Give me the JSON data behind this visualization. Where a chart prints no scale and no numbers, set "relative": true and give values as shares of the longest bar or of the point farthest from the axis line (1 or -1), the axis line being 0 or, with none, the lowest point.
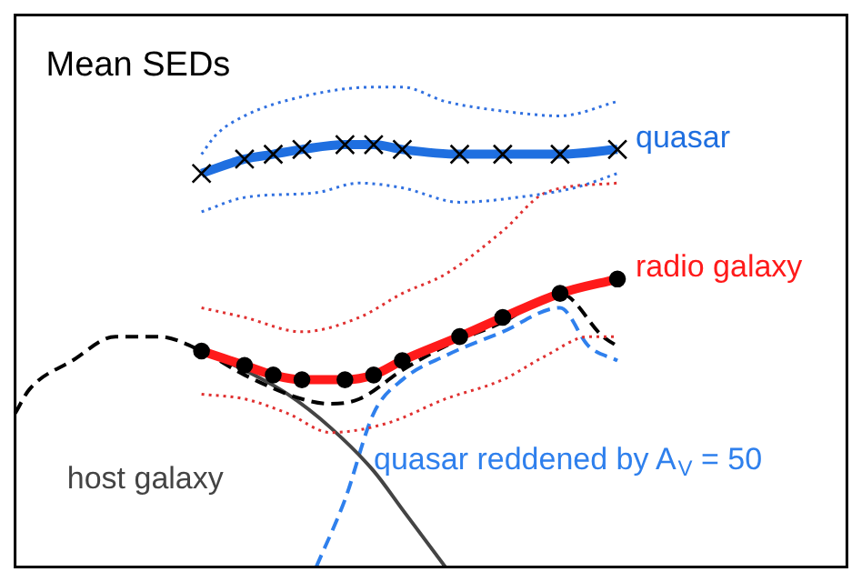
{
  "chart_data": {
    "type": "line",
    "title": "Mean SEDs",
    "relative": true,
    "legend": false,
    "categories": [
      null,
      null,
      null,
      null,
      null,
      null,
      null,
      null,
      null,
      null,
      null,
      null,
      null,
      null,
      null,
      null,
      null,
      null,
      null,
      null,
      null,
      null,
      null,
      null,
      null,
      null,
      null,
      null,
      null,
      null,
      null,
      null,
      null,
      null,
      null,
      null,
      null,
      null,
      null,
      null,
      null,
      null,
      null,
      null,
      null,
      null,
      null,
      null,
      null,
      null,
      null,
      null,
      null,
      null,
      null,
      null,
      null,
      null,
      null
    ],
    "series": [
      {
        "name": "quasar",
        "color": "#1f6fe0",
        "marker": "cross",
        "line_style": "solid",
        "values": [
          null,
          null,
          null,
          null,
          null,
          null,
          null,
          null,
          null,
          null,
          null,
          null,
          null,
          0.82,
          null,
          null,
          0.85,
          null,
          0.86,
          null,
          0.87,
          null,
          null,
          0.88,
          null,
          0.88,
          null,
          0.87,
          null,
          null,
          null,
          0.86,
          null,
          null,
          0.86,
          null,
          null,
          null,
          0.86,
          null,
          null,
          null,
          0.87,
          null,
          null,
          null,
          null,
          null,
          null,
          null,
          null,
          null,
          null,
          null,
          null,
          null,
          null,
          null,
          null
        ]
      },
      {
        "color": "#3070e0",
        "marker": "none",
        "line_style": "dotted",
        "values": [
          null,
          null,
          null,
          null,
          null,
          null,
          null,
          null,
          null,
          null,
          null,
          null,
          null,
          0.86,
          0.9,
          null,
          0.94,
          null,
          null,
          null,
          0.98,
          null,
          null,
          null,
          null,
          1.0,
          null,
          1.0,
          null,
          null,
          0.97,
          null,
          null,
          null,
          0.95,
          null,
          null,
          null,
          0.94,
          null,
          null,
          null,
          0.97,
          null,
          null,
          null,
          null,
          null,
          null,
          null,
          null,
          null,
          null,
          null,
          null,
          null,
          null,
          null,
          null
        ]
      },
      {
        "color": "#3070e0",
        "marker": "none",
        "line_style": "dotted",
        "values": [
          null,
          null,
          null,
          null,
          null,
          null,
          null,
          null,
          null,
          null,
          null,
          null,
          null,
          0.74,
          null,
          null,
          0.77,
          null,
          null,
          null,
          null,
          0.78,
          null,
          null,
          0.8,
          null,
          null,
          0.79,
          null,
          null,
          null,
          0.76,
          null,
          null,
          null,
          0.77,
          null,
          null,
          null,
          0.79,
          null,
          null,
          0.82,
          null,
          null,
          null,
          null,
          null,
          null,
          null,
          null,
          null,
          null,
          null,
          null,
          null,
          null,
          null,
          null
        ]
      },
      {
        "name": "radio galaxy",
        "color": "#ff1a1a",
        "marker": "circle",
        "line_style": "solid",
        "values": [
          null,
          null,
          null,
          null,
          null,
          null,
          null,
          null,
          null,
          null,
          null,
          null,
          null,
          0.45,
          null,
          null,
          0.42,
          null,
          0.4,
          null,
          0.39,
          null,
          null,
          0.39,
          null,
          0.4,
          null,
          0.43,
          null,
          null,
          null,
          0.48,
          null,
          null,
          0.52,
          null,
          null,
          null,
          0.57,
          null,
          null,
          null,
          0.6,
          null,
          null,
          null,
          null,
          null,
          null,
          null,
          null,
          null,
          null,
          null,
          null,
          null,
          null,
          null,
          null
        ]
      },
      {
        "color": "#e03030",
        "marker": "none",
        "line_style": "dotted",
        "values": [
          null,
          null,
          null,
          null,
          null,
          null,
          null,
          null,
          null,
          null,
          null,
          null,
          null,
          0.54,
          null,
          null,
          0.52,
          null,
          null,
          null,
          0.49,
          null,
          null,
          null,
          0.52,
          null,
          null,
          0.57,
          null,
          null,
          0.61,
          null,
          null,
          null,
          0.7,
          null,
          null,
          0.78,
          null,
          null,
          null,
          null,
          0.8,
          null,
          null,
          null,
          null,
          null,
          null,
          null,
          null,
          null,
          null,
          null,
          null,
          null,
          null,
          null,
          null
        ]
      },
      {
        "color": "#e03030",
        "marker": "none",
        "line_style": "dotted",
        "values": [
          null,
          null,
          null,
          null,
          null,
          null,
          null,
          null,
          null,
          null,
          null,
          null,
          null,
          0.36,
          null,
          null,
          0.35,
          null,
          null,
          0.32,
          null,
          null,
          0.28,
          null,
          null,
          null,
          0.3,
          null,
          null,
          null,
          0.35,
          null,
          null,
          null,
          0.39,
          null,
          null,
          0.44,
          null,
          null,
          0.48,
          null,
          0.48,
          null,
          null,
          null,
          null,
          null,
          null,
          null,
          null,
          null,
          null,
          null,
          null,
          null,
          null,
          null,
          null
        ]
      },
      {
        "color": "#000000",
        "marker": "none",
        "line_style": "dashed",
        "values": [
          0.32,
          0.37,
          null,
          null,
          0.43,
          null,
          null,
          0.48,
          null,
          null,
          0.48,
          null,
          null,
          0.45,
          null,
          null,
          0.4,
          null,
          null,
          null,
          0.35,
          null,
          0.34,
          null,
          0.35,
          null,
          null,
          0.41,
          null,
          null,
          0.46,
          null,
          null,
          null,
          0.51,
          null,
          null,
          null,
          0.57,
          null,
          null,
          0.48,
          0.46,
          null,
          null,
          null,
          null,
          null,
          null,
          null,
          null,
          null,
          null,
          null,
          null,
          null,
          null,
          null,
          null
        ]
      },
      {
        "name": "host galaxy",
        "color": "#444444",
        "marker": "none",
        "line_style": "solid",
        "values": [
          null,
          null,
          null,
          null,
          null,
          null,
          null,
          null,
          null,
          null,
          null,
          null,
          null,
          0.45,
          null,
          null,
          0.41,
          null,
          null,
          0.36,
          null,
          null,
          0.29,
          null,
          null,
          0.2,
          null,
          0.12,
          null,
          null,
          0,
          null,
          null,
          null,
          null,
          null,
          null,
          null,
          null,
          null,
          null,
          null,
          null,
          null,
          null,
          null,
          null,
          null,
          null,
          null,
          null,
          null,
          null,
          null,
          null,
          null,
          null,
          null,
          null
        ]
      },
      {
        "name": "quasar reddened by A$_{V}$ = 50",
        "color": "#2f80ed",
        "marker": "none",
        "line_style": "dashed",
        "values": [
          null,
          null,
          null,
          null,
          null,
          null,
          null,
          null,
          null,
          null,
          null,
          null,
          null,
          null,
          null,
          null,
          null,
          null,
          null,
          null,
          null,
          0,
          null,
          0.14,
          null,
          0.32,
          null,
          0.39,
          null,
          null,
          0.44,
          null,
          null,
          null,
          0.49,
          null,
          null,
          null,
          0.54,
          null,
          0.46,
          null,
          0.43,
          null,
          null,
          null,
          null,
          null,
          null,
          null,
          null,
          null,
          null,
          null,
          null,
          null,
          null,
          null,
          null
        ]
      }
    ]
  }
}
